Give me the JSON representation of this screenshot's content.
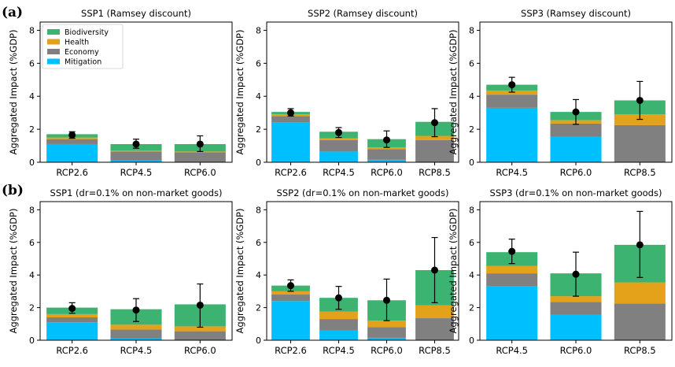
{
  "row_labels": [
    "(a)",
    "(b)"
  ],
  "ylabel": "Aggregated Impact (%GDP)",
  "legend": [
    {
      "name": "Biodiversity",
      "color": "#3cb371"
    },
    {
      "name": "Health",
      "color": "#e3a21a"
    },
    {
      "name": "Economy",
      "color": "#808080"
    },
    {
      "name": "Mitigation",
      "color": "#00bfff"
    }
  ],
  "colors": {
    "Biodiversity": "#3cb371",
    "Health": "#e3a21a",
    "Economy": "#808080",
    "Mitigation": "#00bfff"
  },
  "chart_data": [
    {
      "type": "bar",
      "stacked": true,
      "title": "SSP1 (Ramsey discount)",
      "ylabel": "Aggregated Impact (%GDP)",
      "ylim": [
        0,
        8.5
      ],
      "yticks": [
        0,
        2,
        4,
        6,
        8
      ],
      "legend_position": "top-left",
      "categories": [
        "RCP2.6",
        "RCP4.5",
        "RCP6.0"
      ],
      "series": [
        {
          "name": "Mitigation",
          "values": [
            1.1,
            0.1,
            0.0
          ]
        },
        {
          "name": "Economy",
          "values": [
            0.3,
            0.55,
            0.6
          ]
        },
        {
          "name": "Health",
          "values": [
            0.1,
            0.05,
            0.05
          ]
        },
        {
          "name": "Biodiversity",
          "values": [
            0.2,
            0.4,
            0.45
          ]
        }
      ],
      "points": [
        1.65,
        1.1,
        1.1
      ],
      "err_low": [
        1.45,
        0.85,
        0.65
      ],
      "err_high": [
        1.85,
        1.4,
        1.6
      ]
    },
    {
      "type": "bar",
      "stacked": true,
      "title": "SSP2 (Ramsey discount)",
      "ylabel": "Aggregated Impact (%GDP)",
      "ylim": [
        0,
        8.5
      ],
      "yticks": [
        0,
        2,
        4,
        6,
        8
      ],
      "categories": [
        "RCP2.6",
        "RCP4.5",
        "RCP6.0",
        "RCP8.5"
      ],
      "series": [
        {
          "name": "Mitigation",
          "values": [
            2.4,
            0.65,
            0.15,
            0.0
          ]
        },
        {
          "name": "Economy",
          "values": [
            0.4,
            0.7,
            0.65,
            1.35
          ]
        },
        {
          "name": "Health",
          "values": [
            0.1,
            0.1,
            0.1,
            0.25
          ]
        },
        {
          "name": "Biodiversity",
          "values": [
            0.15,
            0.4,
            0.5,
            0.85
          ]
        }
      ],
      "points": [
        3.0,
        1.8,
        1.35,
        2.4
      ],
      "err_low": [
        2.8,
        1.5,
        0.9,
        1.55
      ],
      "err_high": [
        3.25,
        2.1,
        1.9,
        3.25
      ]
    },
    {
      "type": "bar",
      "stacked": true,
      "title": "SSP3 (Ramsey discount)",
      "ylabel": "Aggregated Impact (%GDP)",
      "ylim": [
        0,
        8.5
      ],
      "yticks": [
        0,
        2,
        4,
        6,
        8
      ],
      "categories": [
        "RCP4.5",
        "RCP6.0",
        "RCP8.5"
      ],
      "series": [
        {
          "name": "Mitigation",
          "values": [
            3.3,
            1.55,
            0.0
          ]
        },
        {
          "name": "Economy",
          "values": [
            0.8,
            0.8,
            2.25
          ]
        },
        {
          "name": "Health",
          "values": [
            0.25,
            0.2,
            0.65
          ]
        },
        {
          "name": "Biodiversity",
          "values": [
            0.35,
            0.5,
            0.85
          ]
        }
      ],
      "points": [
        4.7,
        3.05,
        3.75
      ],
      "err_low": [
        4.25,
        2.3,
        2.6
      ],
      "err_high": [
        5.15,
        3.8,
        4.9
      ]
    },
    {
      "type": "bar",
      "stacked": true,
      "title": "SSP1 (dr=0.1% on non-market goods)",
      "ylabel": "Aggregated Impact (%GDP)",
      "ylim": [
        0,
        8.5
      ],
      "yticks": [
        0,
        2,
        4,
        6,
        8
      ],
      "categories": [
        "RCP2.6",
        "RCP4.5",
        "RCP6.0"
      ],
      "series": [
        {
          "name": "Mitigation",
          "values": [
            1.1,
            0.1,
            0.0
          ]
        },
        {
          "name": "Economy",
          "values": [
            0.3,
            0.55,
            0.55
          ]
        },
        {
          "name": "Health",
          "values": [
            0.2,
            0.3,
            0.3
          ]
        },
        {
          "name": "Biodiversity",
          "values": [
            0.4,
            0.95,
            1.35
          ]
        }
      ],
      "points": [
        1.95,
        1.85,
        2.15
      ],
      "err_low": [
        1.65,
        1.15,
        0.8
      ],
      "err_high": [
        2.3,
        2.55,
        3.45
      ]
    },
    {
      "type": "bar",
      "stacked": true,
      "title": "SSP2 (dr=0.1% on non-market goods)",
      "ylabel": "Aggregated Impact (%GDP)",
      "ylim": [
        0,
        8.5
      ],
      "yticks": [
        0,
        2,
        4,
        6,
        8
      ],
      "categories": [
        "RCP2.6",
        "RCP4.5",
        "RCP6.0",
        "RCP8.5"
      ],
      "series": [
        {
          "name": "Mitigation",
          "values": [
            2.4,
            0.6,
            0.15,
            0.0
          ]
        },
        {
          "name": "Economy",
          "values": [
            0.4,
            0.7,
            0.65,
            1.35
          ]
        },
        {
          "name": "Health",
          "values": [
            0.2,
            0.45,
            0.4,
            0.8
          ]
        },
        {
          "name": "Biodiversity",
          "values": [
            0.35,
            0.85,
            1.25,
            2.15
          ]
        }
      ],
      "points": [
        3.35,
        2.6,
        2.45,
        4.3
      ],
      "err_low": [
        3.0,
        1.9,
        1.2,
        2.3
      ],
      "err_high": [
        3.7,
        3.3,
        3.75,
        6.3
      ]
    },
    {
      "type": "bar",
      "stacked": true,
      "title": "SSP3 (dr=0.1% on non-market goods)",
      "ylabel": "Aggregated Impact (%GDP)",
      "ylim": [
        0,
        8.5
      ],
      "yticks": [
        0,
        2,
        4,
        6,
        8
      ],
      "categories": [
        "RCP4.5",
        "RCP6.0",
        "RCP8.5"
      ],
      "series": [
        {
          "name": "Mitigation",
          "values": [
            3.3,
            1.55,
            0.0
          ]
        },
        {
          "name": "Economy",
          "values": [
            0.8,
            0.8,
            2.25
          ]
        },
        {
          "name": "Health",
          "values": [
            0.45,
            0.35,
            1.3
          ]
        },
        {
          "name": "Biodiversity",
          "values": [
            0.85,
            1.4,
            2.3
          ]
        }
      ],
      "points": [
        5.45,
        4.05,
        5.85
      ],
      "err_low": [
        4.7,
        2.7,
        3.85
      ],
      "err_high": [
        6.2,
        5.4,
        7.9
      ]
    }
  ]
}
